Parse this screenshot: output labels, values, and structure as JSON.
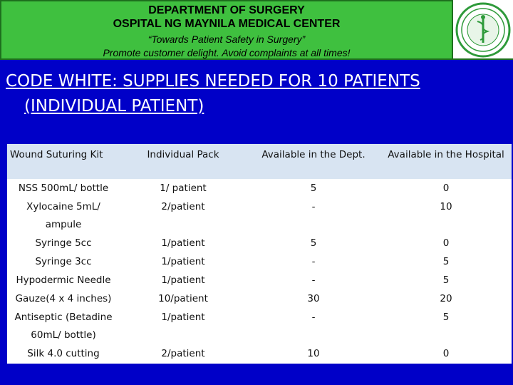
{
  "header": {
    "line1": "DEPARTMENT OF SURGERY",
    "line2": "OSPITAL NG MAYNILA MEDICAL CENTER",
    "line3": "“Towards Patient Safety in Surgery”",
    "line4": "Promote customer delight. Avoid complaints at all times!"
  },
  "title": {
    "line1": "CODE WHITE: SUPPLIES NEEDED FOR 10 PATIENTS",
    "line2": "(INDIVIDUAL PATIENT)"
  },
  "table": {
    "columns": [
      "Wound Suturing Kit",
      "Individual Pack",
      "Available in the Dept.",
      "Available in the Hospital"
    ],
    "rows": [
      {
        "item": "NSS 500mL/ bottle",
        "qty": "1/ patient",
        "dept": "5",
        "hospital": "0"
      },
      {
        "item": "Xylocaine 5mL/ ampule",
        "qty": "2/patient",
        "dept": "-",
        "hospital": "10"
      },
      {
        "item": "Syringe 5cc",
        "qty": "1/patient",
        "dept": "5",
        "hospital": "0"
      },
      {
        "item": "Syringe 3cc",
        "qty": "1/patient",
        "dept": "-",
        "hospital": "5"
      },
      {
        "item": "Hypodermic Needle",
        "qty": "1/patient",
        "dept": "-",
        "hospital": "5"
      },
      {
        "item": "Gauze(4 x 4 inches)",
        "qty": "10/patient",
        "dept": "30",
        "hospital": "20"
      },
      {
        "item": "Antiseptic (Betadine 60mL/ bottle)",
        "qty": "1/patient",
        "dept": "-",
        "hospital": "5"
      },
      {
        "item": "Silk 4.0 cutting",
        "qty": "2/patient",
        "dept": "10",
        "hospital": "0"
      }
    ]
  },
  "colors": {
    "background": "#0000c8",
    "header_green": "#3fc03f",
    "table_header": "#d8e4f2"
  }
}
